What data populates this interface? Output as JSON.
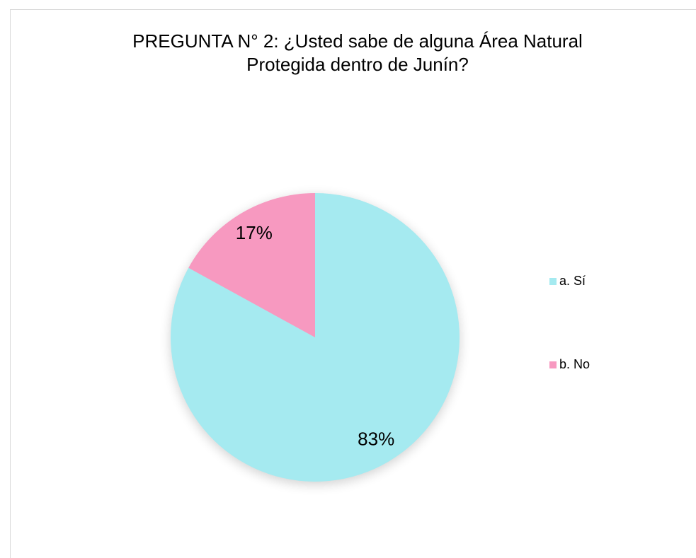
{
  "chart_data": {
    "type": "pie",
    "title": "PREGUNTA N° 2: ¿Usted sabe de alguna Área Natural Protegida dentro de Junín?",
    "categories": [
      "a. Sí",
      "b. No"
    ],
    "values": [
      83,
      17
    ],
    "value_labels": [
      "83%",
      "17%"
    ],
    "colors": [
      "#a5eaf0",
      "#f799c0"
    ],
    "legend": "right"
  }
}
